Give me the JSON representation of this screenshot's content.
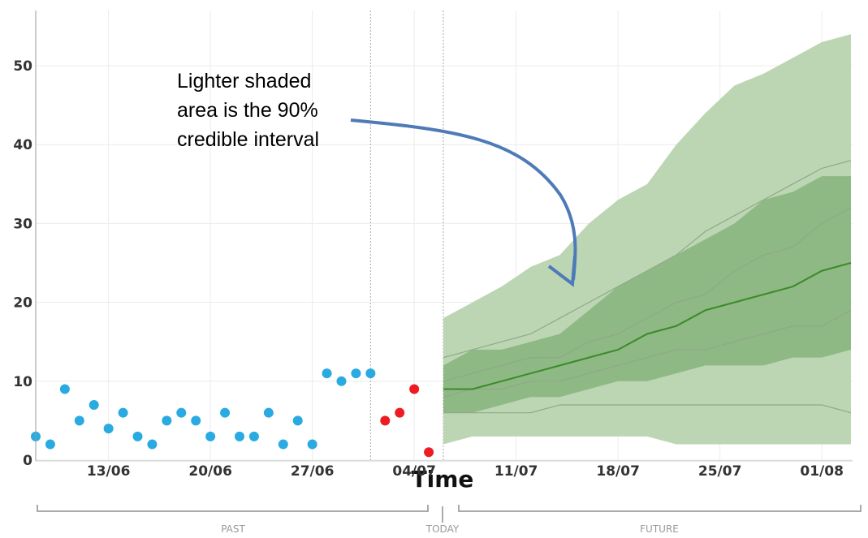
{
  "chart_data": {
    "type": "scatter",
    "x_label": "Time",
    "xlim": [
      "08/06",
      "03/08"
    ],
    "xticks": [
      "13/06",
      "20/06",
      "27/06",
      "04/07",
      "11/07",
      "18/07",
      "25/07",
      "01/08"
    ],
    "ylim": [
      0,
      57
    ],
    "yticks": [
      0,
      10,
      20,
      30,
      40,
      50
    ],
    "grid": true,
    "dividers": [
      "01/07",
      "06/07"
    ],
    "series": [
      {
        "color": "#29abe2",
        "x": [
          "08/06",
          "09/06",
          "10/06",
          "11/06",
          "12/06",
          "13/06",
          "14/06",
          "15/06",
          "16/06",
          "17/06",
          "18/06",
          "19/06",
          "20/06",
          "21/06",
          "22/06",
          "23/06",
          "24/06",
          "25/06",
          "26/06",
          "27/06",
          "28/06",
          "29/06",
          "30/06",
          "01/07"
        ],
        "values": [
          3,
          2,
          9,
          5,
          7,
          4,
          6,
          3,
          2,
          5,
          6,
          5,
          3,
          6,
          3,
          3,
          6,
          2,
          5,
          2,
          11,
          10,
          11,
          11
        ]
      },
      {
        "color": "#ed1c24",
        "x": [
          "02/07",
          "03/07",
          "04/07",
          "05/07"
        ],
        "values": [
          5,
          6,
          9,
          1
        ]
      }
    ],
    "forecast": {
      "x": [
        "06/07",
        "08/07",
        "10/07",
        "12/07",
        "14/07",
        "16/07",
        "18/07",
        "20/07",
        "22/07",
        "24/07",
        "26/07",
        "28/07",
        "30/07",
        "01/08",
        "03/08"
      ],
      "upper_90": [
        18,
        20,
        22,
        24.5,
        26,
        30,
        33,
        35,
        40,
        44,
        47.5,
        49,
        51,
        53,
        54
      ],
      "lower_90": [
        2,
        3,
        3,
        3,
        3,
        3,
        3,
        3,
        2,
        2,
        2,
        2,
        2,
        2,
        2
      ],
      "upper_50": [
        12,
        14,
        14,
        15,
        16,
        19,
        22,
        24,
        26,
        28,
        30,
        33,
        34,
        36,
        36
      ],
      "lower_50": [
        6,
        6,
        7,
        8,
        8,
        9,
        10,
        10,
        11,
        12,
        12,
        12,
        13,
        13,
        14
      ],
      "median": [
        9,
        9,
        10,
        11,
        12,
        13,
        14,
        16,
        17,
        19,
        20,
        21,
        22,
        24,
        25
      ],
      "paths": [
        [
          13,
          14,
          15,
          16,
          18,
          20,
          22,
          24,
          26,
          29,
          31,
          33,
          35,
          37,
          38
        ],
        [
          10,
          11,
          12,
          13,
          13,
          15,
          16,
          18,
          20,
          21,
          24,
          26,
          27,
          30,
          32
        ],
        [
          8,
          9,
          9,
          10,
          10,
          11,
          12,
          13,
          14,
          14,
          15,
          16,
          17,
          17,
          19
        ],
        [
          6,
          6,
          6,
          6,
          7,
          7,
          7,
          7,
          7,
          7,
          7,
          7,
          7,
          7,
          6
        ]
      ],
      "colors": {
        "outer": "#bcd6b4",
        "inner": "#8fb984",
        "median": "#3a8a2a",
        "paths": "#8fa888"
      }
    },
    "annotation": [
      "Lighter shaded",
      "area is the 90%",
      "credible interval"
    ],
    "periods": [
      "PAST",
      "TODAY",
      "FUTURE"
    ]
  }
}
